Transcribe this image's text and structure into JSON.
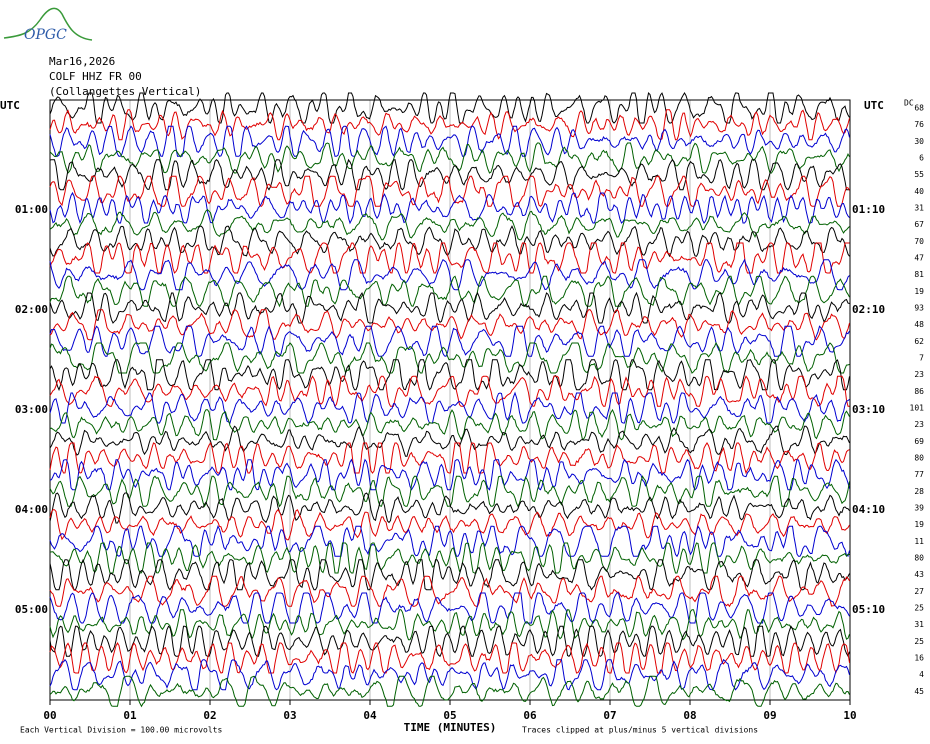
{
  "logo": "OPGC",
  "chart_data": {
    "type": "helicorder",
    "header": [
      "Mar16,2026",
      "COLF HHZ FR 00",
      "(Collangettes Vertical)"
    ],
    "left_axis_title": "UTC",
    "right_axis_title": "UTC",
    "dc_title": "DC",
    "left_labels": [
      "01:00",
      "02:00",
      "03:00",
      "04:00",
      "05:00"
    ],
    "right_labels": [
      "01:10",
      "02:10",
      "03:10",
      "04:10",
      "05:10"
    ],
    "dc_offsets": [
      68,
      76,
      30,
      6,
      55,
      40,
      31,
      67,
      70,
      47,
      81,
      19,
      93,
      48,
      62,
      7,
      23,
      86,
      101,
      23,
      69,
      80,
      77,
      28,
      39,
      19,
      11,
      80,
      43,
      27,
      25,
      31,
      25,
      16,
      4,
      45
    ],
    "colors": [
      "#000000",
      "#e00000",
      "#0000d0",
      "#006000"
    ],
    "xlim": [
      0,
      10
    ],
    "xticks": [
      {
        "value": 0,
        "label": "00"
      },
      {
        "value": 1,
        "label": "01"
      },
      {
        "value": 2,
        "label": "02"
      },
      {
        "value": 3,
        "label": "03"
      },
      {
        "value": 4,
        "label": "04"
      },
      {
        "value": 5,
        "label": "05"
      },
      {
        "value": 6,
        "label": "06"
      },
      {
        "value": 7,
        "label": "07"
      },
      {
        "value": 8,
        "label": "08"
      },
      {
        "value": 9,
        "label": "09"
      },
      {
        "value": 10,
        "label": "10"
      }
    ],
    "xlabel": "TIME (MINUTES)",
    "scale_note": "Each Vertical Division =  100.00 microvolts",
    "clip_note": "Traces clipped at plus/minus 5 vertical divisions",
    "grid": true
  }
}
